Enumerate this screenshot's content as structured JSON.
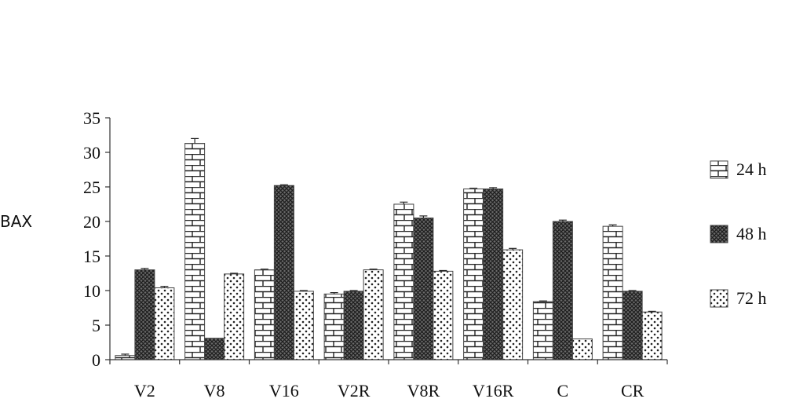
{
  "chart_data": {
    "type": "bar",
    "title": "",
    "xlabel": "",
    "ylabel": "BAX",
    "ylim": [
      0,
      35
    ],
    "yticks": [
      0,
      5,
      10,
      15,
      20,
      25,
      30,
      35
    ],
    "grid": false,
    "legend_position": "right",
    "categories": [
      "V2",
      "V8",
      "V16",
      "V2R",
      "V8R",
      "V16R",
      "C",
      "CR"
    ],
    "series": [
      {
        "name": "24 h",
        "pattern": "brick",
        "values": [
          0.6,
          31.3,
          13.0,
          9.5,
          22.5,
          24.7,
          8.4,
          19.3
        ],
        "errors": [
          0.2,
          0.7,
          0.1,
          0.2,
          0.3,
          0.1,
          0.1,
          0.2
        ]
      },
      {
        "name": "48 h",
        "pattern": "crosshatch",
        "values": [
          13.0,
          3.1,
          25.2,
          9.9,
          20.5,
          24.7,
          20.0,
          9.9
        ],
        "errors": [
          0.2,
          0.0,
          0.1,
          0.1,
          0.3,
          0.2,
          0.2,
          0.1
        ]
      },
      {
        "name": "72 h",
        "pattern": "dots",
        "values": [
          10.4,
          12.4,
          9.9,
          13.0,
          12.8,
          15.9,
          3.0,
          6.9
        ],
        "errors": [
          0.2,
          0.1,
          0.1,
          0.1,
          0.1,
          0.2,
          0.0,
          0.1
        ]
      }
    ]
  }
}
